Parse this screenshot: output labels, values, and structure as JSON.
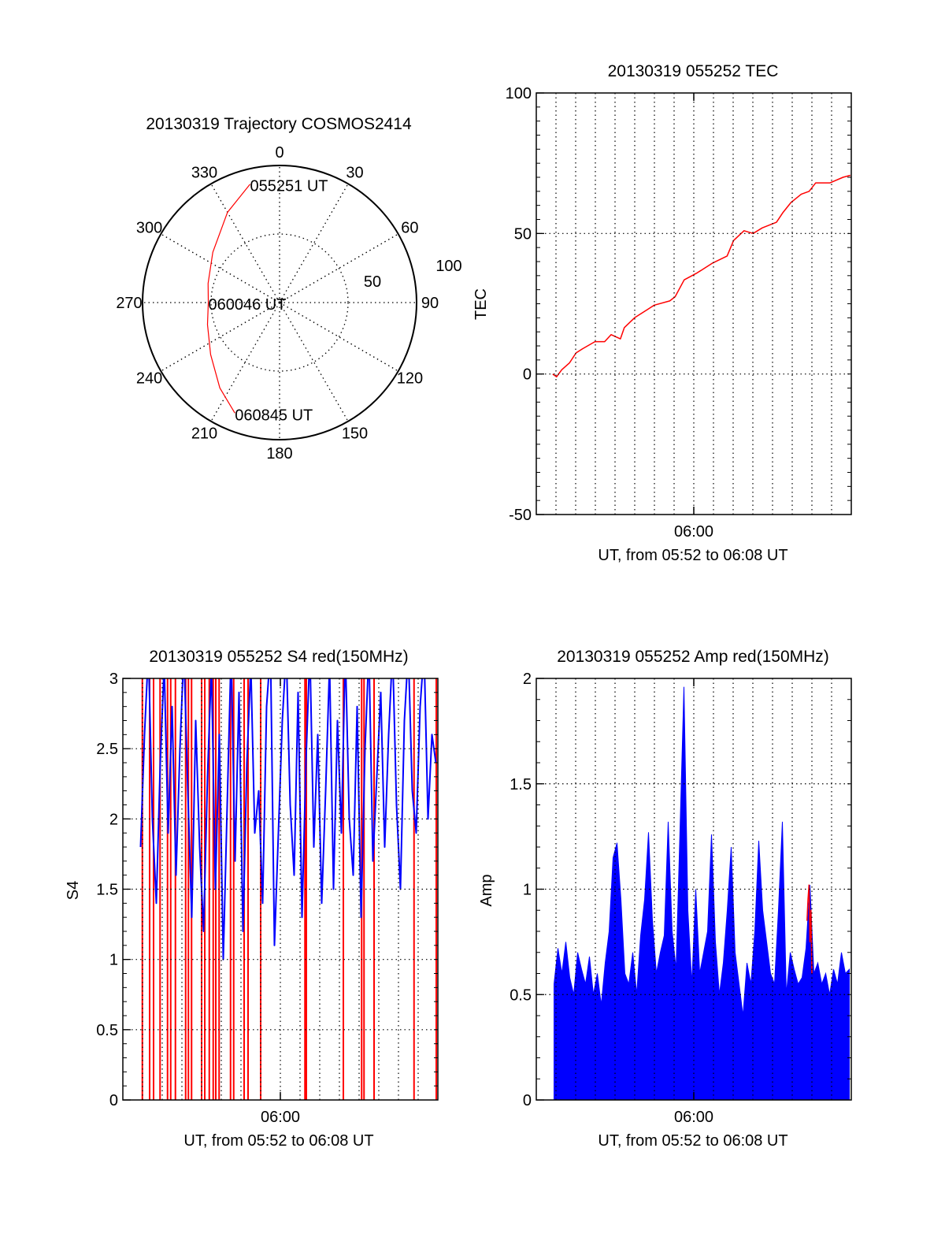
{
  "colors": {
    "trace_red": "#ff0000",
    "trace_blue": "#0000ff",
    "axis": "#000000"
  },
  "chart_data": [
    {
      "id": "trajectory",
      "type": "polar",
      "title": "20130319 Trajectory COSMOS2414",
      "angle_ticks": [
        "0",
        "30",
        "60",
        "90",
        "120",
        "150",
        "180",
        "210",
        "240",
        "270",
        "300",
        "330"
      ],
      "angle_values": [
        0,
        30,
        60,
        90,
        120,
        150,
        180,
        210,
        240,
        270,
        300,
        330
      ],
      "radius_ticks": [
        {
          "value": 50,
          "label": "50"
        },
        {
          "value": 100,
          "label": "100"
        }
      ],
      "rlim": [
        0,
        100
      ],
      "trajectory": {
        "az": [
          346,
          330,
          307,
          285,
          270,
          253,
          233,
          215,
          202
        ],
        "r": [
          89,
          76,
          61,
          54,
          52,
          55,
          63,
          76,
          87
        ]
      },
      "annotations": [
        {
          "text": "055251 UT",
          "az": 346,
          "r": 89
        },
        {
          "text": "060046 UT",
          "az": 270,
          "r": 52
        },
        {
          "text": "060845 UT",
          "az": 202,
          "r": 87
        }
      ]
    },
    {
      "id": "tec",
      "type": "line",
      "title": "20130319 055252 TEC",
      "ylabel": "TEC",
      "xlabel": "UT, from 05:52 to 06:08 UT",
      "x_units": "minutes after 05:52",
      "xlim": [
        0,
        16
      ],
      "ylim": [
        -50,
        100
      ],
      "yticks": [
        {
          "v": 100,
          "label": "100"
        },
        {
          "v": 50,
          "label": "50"
        },
        {
          "v": 0,
          "label": "0"
        },
        {
          "v": -50,
          "label": "-50"
        }
      ],
      "ygrid": [
        0,
        50
      ],
      "yminor": 5,
      "xticks": [
        {
          "v": 8,
          "label": "06:00"
        }
      ],
      "xgrid_step": 1,
      "series": [
        {
          "name": "TEC",
          "color": "#ff0000",
          "x": [
            0.83,
            1.03,
            1.29,
            1.69,
            2.02,
            2.35,
            2.98,
            3.47,
            3.8,
            4.27,
            4.47,
            4.99,
            5.66,
            5.99,
            6.78,
            7.05,
            7.51,
            8.17,
            8.96,
            9.69,
            10.02,
            10.55,
            11.01,
            11.48,
            12.2,
            12.53,
            12.93,
            13.46,
            13.86,
            14.19,
            14.92,
            15.58,
            15.95
          ],
          "y": [
            0,
            -1,
            1.5,
            4,
            7.5,
            9,
            11.5,
            11.5,
            14,
            12.5,
            16.5,
            20,
            23,
            24.5,
            26,
            27.5,
            33.5,
            36,
            39.5,
            42,
            47.5,
            51,
            50,
            52,
            54,
            57.5,
            61,
            64,
            65,
            68,
            68,
            70,
            70.7
          ]
        }
      ]
    },
    {
      "id": "s4",
      "type": "line",
      "title": "20130319 055252 S4 red(150MHz)",
      "ylabel": "S4",
      "xlabel": "UT, from 05:52 to 06:08 UT",
      "x_units": "minutes after 05:52",
      "xlim": [
        0,
        16
      ],
      "ylim": [
        0,
        3
      ],
      "yticks": [
        {
          "v": 3,
          "label": "3"
        },
        {
          "v": 2.5,
          "label": "2.5"
        },
        {
          "v": 2,
          "label": "2"
        },
        {
          "v": 1.5,
          "label": "1.5"
        },
        {
          "v": 1,
          "label": "1"
        },
        {
          "v": 0.5,
          "label": "0.5"
        },
        {
          "v": 0,
          "label": "0"
        }
      ],
      "ygrid": [
        0.5,
        1,
        1.5,
        2,
        2.5
      ],
      "yminor": 0.1,
      "xticks": [
        {
          "v": 8,
          "label": "06:00"
        }
      ],
      "xgrid_step": 1,
      "red_dropouts": {
        "color": "#ff0000",
        "x": [
          0.99,
          1.36,
          1.56,
          1.89,
          2.27,
          2.43,
          2.67,
          3.19,
          3.33,
          3.49,
          4.0,
          4.16,
          4.39,
          4.59,
          4.72,
          4.89,
          5.47,
          5.63,
          6.16,
          6.36,
          7.0,
          9.25,
          9.32,
          11.2,
          12.13,
          12.25,
          12.76,
          14.79,
          15.92
        ]
      },
      "series": [
        {
          "name": "S4",
          "color": "#0000ff",
          "t_start": 0.9,
          "t_step": 0.2,
          "y": [
            1.8,
            2.6,
            3.2,
            2.0,
            1.4,
            2.4,
            3.1,
            1.9,
            2.8,
            1.6,
            2.5,
            3.2,
            2.2,
            1.3,
            2.7,
            1.8,
            1.2,
            2.3,
            3.1,
            1.5,
            2.6,
            1.0,
            2.1,
            3.2,
            1.7,
            2.9,
            1.2,
            2.4,
            3.1,
            1.9,
            2.2,
            1.4,
            2.8,
            3.2,
            1.1,
            1.9,
            2.7,
            3.2,
            2.1,
            1.6,
            2.9,
            1.3,
            2.4,
            3.2,
            1.8,
            2.6,
            1.4,
            2.2,
            3.1,
            1.5,
            2.7,
            1.9,
            3.2,
            2.0,
            1.6,
            2.8,
            1.3,
            2.5,
            3.2,
            1.7,
            2.3,
            2.9,
            1.8,
            2.6,
            3.2,
            2.1,
            1.5,
            2.7,
            3.2,
            2.2,
            1.9,
            2.8,
            3.2,
            2.0,
            2.6,
            2.4
          ]
        }
      ]
    },
    {
      "id": "amp",
      "type": "area",
      "title": "20130319 055252 Amp red(150MHz)",
      "ylabel": "Amp",
      "xlabel": "UT, from 05:52 to 06:08 UT",
      "x_units": "minutes after 05:52",
      "xlim": [
        0,
        16
      ],
      "ylim": [
        0,
        2
      ],
      "yticks": [
        {
          "v": 2,
          "label": "2"
        },
        {
          "v": 1.5,
          "label": "1.5"
        },
        {
          "v": 1,
          "label": "1"
        },
        {
          "v": 0.5,
          "label": "0.5"
        },
        {
          "v": 0,
          "label": "0"
        }
      ],
      "ygrid": [
        0.5,
        1,
        1.5
      ],
      "yminor": 0.1,
      "xticks": [
        {
          "v": 8,
          "label": "06:00"
        }
      ],
      "xgrid_step": 1,
      "series": [
        {
          "name": "Amp",
          "color": "#0000ff",
          "t_start": 0.9,
          "t_step": 0.2,
          "y": [
            0.55,
            0.72,
            0.6,
            0.75,
            0.58,
            0.5,
            0.7,
            0.62,
            0.55,
            0.68,
            0.5,
            0.6,
            0.45,
            0.65,
            0.8,
            1.15,
            1.22,
            0.95,
            0.6,
            0.55,
            0.7,
            0.5,
            0.78,
            0.95,
            1.27,
            0.85,
            0.6,
            0.7,
            0.78,
            1.32,
            0.8,
            0.62,
            1.28,
            1.96,
            0.9,
            0.55,
            1.0,
            0.6,
            0.7,
            0.8,
            1.26,
            0.75,
            0.5,
            0.65,
            0.9,
            1.2,
            0.7,
            0.55,
            0.4,
            0.65,
            0.55,
            0.8,
            1.23,
            0.9,
            0.75,
            0.6,
            0.55,
            0.9,
            1.32,
            0.5,
            0.7,
            0.62,
            0.55,
            0.58,
            0.72,
            1.02,
            0.6,
            0.65,
            0.55,
            0.6,
            0.5,
            0.62,
            0.55,
            0.7,
            0.6,
            0.62
          ]
        },
        {
          "name": "Amp red segment",
          "color": "#ff0000",
          "x": [
            13.75,
            13.8,
            13.85,
            13.9,
            13.95,
            14.0
          ],
          "y": [
            0.85,
            0.95,
            1.02,
            0.75,
            0.9,
            0.6
          ]
        }
      ]
    }
  ]
}
